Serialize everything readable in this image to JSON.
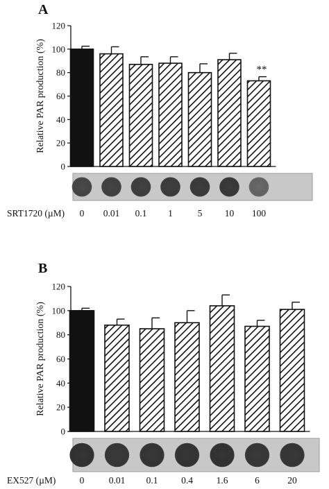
{
  "chart_data": [
    {
      "type": "bar",
      "panel": "A",
      "ylabel": "Relative PAR production (%)",
      "ylim": [
        0,
        120
      ],
      "yticks": [
        "0",
        "20",
        "40",
        "60",
        "80",
        "100",
        "120"
      ],
      "treatment_label": "SRT1720 (µM)",
      "categories": [
        "0",
        "0.01",
        "0.1",
        "1",
        "5",
        "10",
        "100"
      ],
      "values": [
        100,
        96,
        87,
        88,
        80,
        91,
        73
      ],
      "errors": [
        2.5,
        6,
        6.5,
        5.5,
        7.5,
        5.5,
        3.5
      ],
      "fills": [
        "solid",
        "hatched",
        "hatched",
        "hatched",
        "hatched",
        "hatched",
        "hatched"
      ],
      "annotations": [
        "",
        "",
        "",
        "",
        "",
        "",
        "**"
      ],
      "blot_spot_colors": [
        "#4a4a4a",
        "#454545",
        "#424242",
        "#404040",
        "#3e3e3e",
        "#3c3c3c",
        "#6a6a6a"
      ]
    },
    {
      "type": "bar",
      "panel": "B",
      "ylabel": "Relative PAR production (%)",
      "ylim": [
        0,
        120
      ],
      "yticks": [
        "0",
        "20",
        "40",
        "60",
        "80",
        "100",
        "120"
      ],
      "treatment_label": "EX527 (µM)",
      "categories": [
        "0",
        "0.01",
        "0.1",
        "0.4",
        "1.6",
        "6",
        "20"
      ],
      "values": [
        100,
        88,
        85,
        90,
        104,
        87,
        101
      ],
      "errors": [
        2,
        5,
        9,
        10,
        9,
        5,
        6
      ],
      "fills": [
        "solid",
        "hatched",
        "hatched",
        "hatched",
        "hatched",
        "hatched",
        "hatched"
      ],
      "annotations": [
        "",
        "",
        "",
        "",
        "",
        "",
        ""
      ],
      "blot_spot_colors": [
        "#353535",
        "#3a3a3a",
        "#383838",
        "#373737",
        "#363636",
        "#3a3a3a",
        "#393939"
      ]
    }
  ],
  "colors": {
    "bar_solid": "#111111",
    "hatch": "#111111",
    "blot_background": "#c8c8c8"
  }
}
